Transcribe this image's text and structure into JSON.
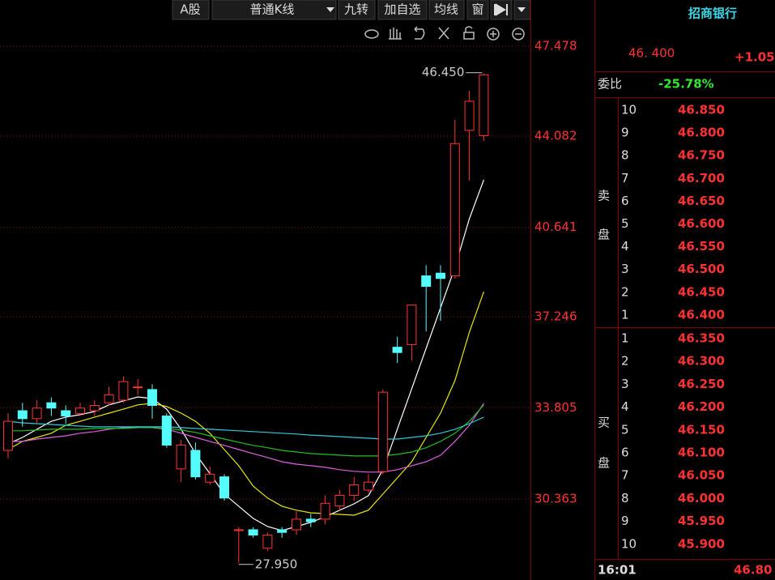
{
  "toolbar": {
    "buttons": [
      "A股",
      "普通K线",
      "九转",
      "加自选",
      "均线",
      "窗"
    ]
  },
  "chart_data": {
    "type": "candlestick",
    "open": [
      32.2,
      33.7,
      33.4,
      34.0,
      33.7,
      33.6,
      33.7,
      34.0,
      34.1,
      34.6,
      34.5,
      33.5,
      31.5,
      32.2,
      31.0,
      31.2,
      29.2,
      29.2,
      28.5,
      29.2,
      29.2,
      29.6,
      29.6,
      30.1,
      30.5,
      30.7,
      31.4,
      36.1,
      36.2,
      38.8,
      38.9,
      38.8,
      44.3,
      44.1
    ],
    "high": [
      33.6,
      34.0,
      34.1,
      34.2,
      33.9,
      34.0,
      34.1,
      34.6,
      35.0,
      34.9,
      34.7,
      33.6,
      32.6,
      32.5,
      31.6,
      31.3,
      29.3,
      29.3,
      29.1,
      29.3,
      29.9,
      29.8,
      30.5,
      30.7,
      31.2,
      31.3,
      34.5,
      36.5,
      37.7,
      39.2,
      39.2,
      44.7,
      45.8,
      46.45
    ],
    "low": [
      31.9,
      33.1,
      33.2,
      33.5,
      33.2,
      33.5,
      33.5,
      33.9,
      34.0,
      34.3,
      33.4,
      32.3,
      31.0,
      31.1,
      30.9,
      30.3,
      27.95,
      28.9,
      28.4,
      28.9,
      29.0,
      29.3,
      29.4,
      29.9,
      30.3,
      30.6,
      31.3,
      35.5,
      35.6,
      36.7,
      37.1,
      38.7,
      42.4,
      43.9
    ],
    "close": [
      33.3,
      33.4,
      33.8,
      33.8,
      33.5,
      33.8,
      33.9,
      34.3,
      34.8,
      34.6,
      33.9,
      32.4,
      32.4,
      31.2,
      31.3,
      30.4,
      29.2,
      29.0,
      29.0,
      29.1,
      29.6,
      29.5,
      30.2,
      30.5,
      30.9,
      31.0,
      34.4,
      35.9,
      37.7,
      38.4,
      38.7,
      43.8,
      45.4,
      46.4
    ],
    "up_color": "#ff3232",
    "down_color": "#54fcfc",
    "series": [
      {
        "color": "#ffffff",
        "values": [
          32.45,
          32.69,
          33.0,
          33.3,
          33.46,
          33.55,
          33.67,
          33.92,
          34.07,
          34.22,
          34.16,
          33.76,
          33.0,
          32.08,
          31.32,
          30.55,
          30.09,
          29.63,
          29.32,
          29.17,
          29.32,
          29.48,
          29.69,
          29.94,
          30.18,
          30.49,
          31.47,
          33.0,
          34.53,
          36.06,
          37.59,
          39.12,
          40.96,
          42.43
        ]
      },
      {
        "color": "#e8e800",
        "values": [
          32.23,
          32.54,
          32.69,
          32.85,
          33.15,
          33.3,
          33.46,
          33.61,
          33.76,
          33.92,
          33.98,
          33.86,
          33.61,
          33.3,
          32.85,
          32.23,
          31.62,
          30.85,
          30.4,
          30.09,
          29.94,
          29.84,
          29.81,
          29.78,
          29.75,
          29.94,
          30.55,
          31.16,
          31.77,
          32.69,
          33.61,
          34.84,
          36.67,
          38.2
        ]
      },
      {
        "color": "#e060e0",
        "values": [
          32.54,
          32.54,
          32.63,
          32.69,
          32.75,
          32.85,
          32.91,
          33.0,
          33.06,
          33.09,
          33.06,
          33.0,
          32.85,
          32.69,
          32.54,
          32.39,
          32.23,
          32.08,
          31.93,
          31.77,
          31.68,
          31.62,
          31.56,
          31.47,
          31.41,
          31.38,
          31.38,
          31.47,
          31.62,
          31.77,
          32.02,
          32.54,
          33.15,
          33.98
        ]
      },
      {
        "color": "#20c020",
        "values": [
          32.94,
          32.94,
          32.97,
          33.0,
          33.0,
          33.0,
          33.03,
          33.03,
          33.03,
          33.06,
          33.06,
          33.03,
          32.97,
          32.88,
          32.75,
          32.63,
          32.51,
          32.39,
          32.3,
          32.2,
          32.14,
          32.08,
          32.05,
          32.02,
          31.99,
          31.99,
          31.99,
          32.05,
          32.14,
          32.3,
          32.54,
          32.85,
          33.3,
          33.92
        ]
      },
      {
        "color": "#30c8d8",
        "values": [
          33.3,
          33.24,
          33.21,
          33.18,
          33.15,
          33.12,
          33.09,
          33.09,
          33.09,
          33.09,
          33.09,
          33.09,
          33.06,
          33.03,
          33.0,
          32.97,
          32.94,
          32.91,
          32.88,
          32.85,
          32.82,
          32.78,
          32.75,
          32.72,
          32.69,
          32.66,
          32.63,
          32.63,
          32.69,
          32.75,
          32.85,
          33.0,
          33.21,
          33.46
        ]
      }
    ],
    "ylim": [
      27.3,
      48.37
    ],
    "yticks": [
      47.478,
      44.082,
      40.641,
      37.246,
      33.805,
      30.363
    ],
    "grid": true,
    "annotations": [
      {
        "label": "46.450",
        "value": 46.45,
        "index": 33
      },
      {
        "label": "27.950",
        "value": 27.95,
        "index": 16
      }
    ]
  },
  "quote": {
    "name": "招商银行",
    "price": "46. 400",
    "change": "+1.05",
    "ratio_label": "委比",
    "ratio": "-25.78%",
    "sell_label": [
      "卖",
      "盘"
    ],
    "buy_label": [
      "买",
      "盘"
    ],
    "sell": [
      [
        "10",
        "46.850"
      ],
      [
        "9",
        "46.800"
      ],
      [
        "8",
        "46.750"
      ],
      [
        "7",
        "46.700"
      ],
      [
        "6",
        "46.650"
      ],
      [
        "5",
        "46.600"
      ],
      [
        "4",
        "46.550"
      ],
      [
        "3",
        "46.500"
      ],
      [
        "2",
        "46.450"
      ],
      [
        "1",
        "46.400"
      ]
    ],
    "buy": [
      [
        "1",
        "46.350"
      ],
      [
        "2",
        "46.300"
      ],
      [
        "3",
        "46.250"
      ],
      [
        "4",
        "46.200"
      ],
      [
        "5",
        "46.150"
      ],
      [
        "6",
        "46.100"
      ],
      [
        "7",
        "46.050"
      ],
      [
        "8",
        "46.000"
      ],
      [
        "9",
        "45.950"
      ],
      [
        "10",
        "45.900"
      ]
    ],
    "time": "16:01",
    "last": "46.80"
  }
}
